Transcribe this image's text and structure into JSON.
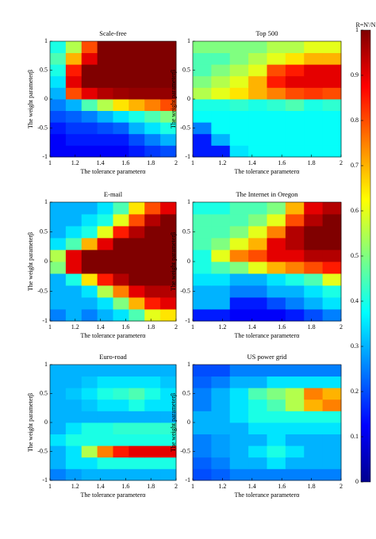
{
  "chart_data": [
    {
      "type": "heatmap",
      "title": "Scale-free",
      "x_label": "The tolerance parameterα",
      "y_label": "The weight parameterβ",
      "xlim": [
        1,
        2
      ],
      "ylim": [
        -1,
        1
      ],
      "xticks": [
        1,
        1.2,
        1.4,
        1.6,
        1.8,
        2
      ],
      "yticks": [
        -1,
        -0.5,
        0,
        0.5,
        1
      ],
      "z": [
        [
          0.12,
          0.12,
          0.12,
          0.12,
          0.12,
          0.15,
          0.18,
          0.2
        ],
        [
          0.12,
          0.15,
          0.15,
          0.15,
          0.15,
          0.2,
          0.25,
          0.3
        ],
        [
          0.15,
          0.18,
          0.18,
          0.2,
          0.22,
          0.3,
          0.35,
          0.4
        ],
        [
          0.2,
          0.22,
          0.25,
          0.3,
          0.35,
          0.4,
          0.45,
          0.5
        ],
        [
          0.25,
          0.3,
          0.45,
          0.55,
          0.65,
          0.7,
          0.75,
          0.8
        ],
        [
          0.3,
          0.8,
          0.9,
          0.95,
          0.97,
          0.98,
          0.98,
          0.98
        ],
        [
          0.35,
          0.9,
          1,
          1,
          1,
          1,
          1,
          1
        ],
        [
          0.4,
          0.85,
          1,
          1,
          1,
          1,
          1,
          1
        ],
        [
          0.45,
          0.7,
          0.9,
          1,
          1,
          1,
          1,
          1
        ],
        [
          0.4,
          0.55,
          0.8,
          1,
          1,
          1,
          1,
          1
        ]
      ]
    },
    {
      "type": "heatmap",
      "title": "Top 500",
      "x_label": "The tolerance parameterα",
      "y_label": "The weight parameterβ",
      "xlim": [
        1,
        2
      ],
      "ylim": [
        -1,
        1
      ],
      "xticks": [
        1,
        1.2,
        1.4,
        1.6,
        1.8,
        2
      ],
      "yticks": [
        -1,
        -0.5,
        0,
        0.5,
        1
      ],
      "z": [
        [
          0.15,
          0.15,
          0.35,
          0.38,
          0.38,
          0.38,
          0.38,
          0.38
        ],
        [
          0.15,
          0.3,
          0.38,
          0.38,
          0.38,
          0.38,
          0.38,
          0.38
        ],
        [
          0.25,
          0.38,
          0.38,
          0.38,
          0.38,
          0.38,
          0.38,
          0.38
        ],
        [
          0.38,
          0.38,
          0.38,
          0.38,
          0.38,
          0.38,
          0.38,
          0.38
        ],
        [
          0.4,
          0.4,
          0.42,
          0.4,
          0.42,
          0.45,
          0.4,
          0.42
        ],
        [
          0.55,
          0.6,
          0.65,
          0.7,
          0.75,
          0.8,
          0.82,
          0.8
        ],
        [
          0.5,
          0.55,
          0.6,
          0.7,
          0.85,
          0.9,
          0.9,
          0.9
        ],
        [
          0.45,
          0.5,
          0.55,
          0.6,
          0.8,
          0.85,
          0.9,
          0.9
        ],
        [
          0.45,
          0.45,
          0.5,
          0.55,
          0.6,
          0.65,
          0.7,
          0.7
        ],
        [
          0.5,
          0.5,
          0.5,
          0.5,
          0.55,
          0.55,
          0.6,
          0.6
        ]
      ]
    },
    {
      "type": "heatmap",
      "title": "E-mail",
      "x_label": "The tolerance parameterα",
      "y_label": "The weight parameterβ",
      "xlim": [
        1,
        2
      ],
      "ylim": [
        -1,
        1
      ],
      "xticks": [
        1,
        1.2,
        1.4,
        1.6,
        1.8,
        2
      ],
      "yticks": [
        -1,
        -0.5,
        0,
        0.5,
        1
      ],
      "z": [
        [
          0.25,
          0.3,
          0.25,
          0.3,
          0.35,
          0.45,
          0.6,
          0.65
        ],
        [
          0.3,
          0.3,
          0.3,
          0.35,
          0.5,
          0.7,
          0.85,
          0.9
        ],
        [
          0.3,
          0.3,
          0.35,
          0.55,
          0.75,
          0.9,
          0.95,
          0.95
        ],
        [
          0.3,
          0.4,
          0.65,
          0.85,
          0.95,
          1,
          1,
          1
        ],
        [
          0.5,
          0.9,
          1,
          1,
          1,
          1,
          1,
          1
        ],
        [
          0.55,
          0.9,
          1,
          1,
          1,
          1,
          1,
          1
        ],
        [
          0.35,
          0.45,
          0.7,
          0.9,
          1,
          1,
          1,
          1
        ],
        [
          0.3,
          0.35,
          0.4,
          0.6,
          0.85,
          0.95,
          1,
          1
        ],
        [
          0.3,
          0.3,
          0.35,
          0.4,
          0.6,
          0.8,
          0.95,
          1
        ],
        [
          0.3,
          0.3,
          0.3,
          0.35,
          0.45,
          0.65,
          0.8,
          0.9
        ]
      ]
    },
    {
      "type": "heatmap",
      "title": "The Internet in Oregon",
      "x_label": "The tolerance parameterα",
      "y_label": "The weight parameterβ",
      "xlim": [
        1,
        2
      ],
      "ylim": [
        -1,
        1
      ],
      "xticks": [
        1,
        1.2,
        1.4,
        1.6,
        1.8,
        2
      ],
      "yticks": [
        -1,
        -0.5,
        0,
        0.5,
        1
      ],
      "z": [
        [
          0.15,
          0.15,
          0.12,
          0.12,
          0.12,
          0.15,
          0.2,
          0.25
        ],
        [
          0.3,
          0.3,
          0.15,
          0.15,
          0.2,
          0.25,
          0.3,
          0.35
        ],
        [
          0.3,
          0.3,
          0.25,
          0.25,
          0.3,
          0.3,
          0.35,
          0.4
        ],
        [
          0.35,
          0.35,
          0.3,
          0.3,
          0.35,
          0.4,
          0.45,
          0.6
        ],
        [
          0.4,
          0.45,
          0.5,
          0.6,
          0.7,
          0.75,
          0.8,
          0.85
        ],
        [
          0.4,
          0.6,
          0.75,
          0.8,
          0.9,
          0.9,
          0.95,
          0.95
        ],
        [
          0.45,
          0.5,
          0.6,
          0.7,
          0.9,
          0.95,
          1,
          1
        ],
        [
          0.45,
          0.45,
          0.5,
          0.6,
          0.75,
          0.95,
          1,
          1
        ],
        [
          0.45,
          0.45,
          0.45,
          0.5,
          0.6,
          0.8,
          0.95,
          1
        ],
        [
          0.4,
          0.4,
          0.45,
          0.45,
          0.5,
          0.7,
          0.9,
          0.95
        ]
      ]
    },
    {
      "type": "heatmap",
      "title": "Euro-road",
      "x_label": "The tolerance parameterα",
      "y_label": "The weight parameterβ",
      "xlim": [
        1,
        2
      ],
      "ylim": [
        -1,
        1
      ],
      "xticks": [
        1,
        1.2,
        1.4,
        1.6,
        1.8,
        2
      ],
      "yticks": [
        -1,
        -0.5,
        0,
        0.5,
        1
      ],
      "z": [
        [
          0.25,
          0.28,
          0.3,
          0.3,
          0.3,
          0.3,
          0.3,
          0.3
        ],
        [
          0.3,
          0.35,
          0.35,
          0.4,
          0.4,
          0.4,
          0.4,
          0.4
        ],
        [
          0.3,
          0.35,
          0.55,
          0.75,
          0.85,
          0.9,
          0.9,
          0.9
        ],
        [
          0.35,
          0.4,
          0.4,
          0.4,
          0.4,
          0.4,
          0.4,
          0.4
        ],
        [
          0.3,
          0.35,
          0.4,
          0.4,
          0.42,
          0.42,
          0.42,
          0.42
        ],
        [
          0.3,
          0.3,
          0.3,
          0.3,
          0.3,
          0.3,
          0.3,
          0.3
        ],
        [
          0.3,
          0.3,
          0.32,
          0.35,
          0.35,
          0.4,
          0.35,
          0.35
        ],
        [
          0.3,
          0.32,
          0.35,
          0.4,
          0.42,
          0.45,
          0.4,
          0.35
        ],
        [
          0.3,
          0.3,
          0.32,
          0.35,
          0.35,
          0.35,
          0.35,
          0.32
        ],
        [
          0.3,
          0.3,
          0.3,
          0.3,
          0.3,
          0.3,
          0.3,
          0.3
        ]
      ]
    },
    {
      "type": "heatmap",
      "title": "US power grid",
      "x_label": "The tolerance parameterα",
      "y_label": "The weight parameterβ",
      "xlim": [
        1,
        2
      ],
      "ylim": [
        -1,
        1
      ],
      "xticks": [
        1,
        1.2,
        1.4,
        1.6,
        1.8,
        2
      ],
      "yticks": [
        -1,
        -0.5,
        0,
        0.5,
        1
      ],
      "z": [
        [
          0.2,
          0.22,
          0.25,
          0.25,
          0.25,
          0.25,
          0.25,
          0.25
        ],
        [
          0.22,
          0.25,
          0.3,
          0.3,
          0.35,
          0.3,
          0.3,
          0.3
        ],
        [
          0.25,
          0.28,
          0.3,
          0.35,
          0.4,
          0.35,
          0.3,
          0.3
        ],
        [
          0.25,
          0.28,
          0.3,
          0.3,
          0.35,
          0.3,
          0.3,
          0.3
        ],
        [
          0.3,
          0.3,
          0.3,
          0.35,
          0.35,
          0.35,
          0.35,
          0.35
        ],
        [
          0.3,
          0.3,
          0.35,
          0.4,
          0.4,
          0.4,
          0.4,
          0.4
        ],
        [
          0.25,
          0.3,
          0.35,
          0.4,
          0.45,
          0.55,
          0.7,
          0.75
        ],
        [
          0.25,
          0.3,
          0.35,
          0.45,
          0.5,
          0.55,
          0.75,
          0.7
        ],
        [
          0.22,
          0.25,
          0.3,
          0.3,
          0.35,
          0.35,
          0.35,
          0.35
        ],
        [
          0.2,
          0.2,
          0.25,
          0.25,
          0.25,
          0.25,
          0.25,
          0.25
        ]
      ]
    }
  ],
  "colorbar": {
    "label": "R=N'/N",
    "lim": [
      0,
      1
    ],
    "ticks": [
      0,
      0.1,
      0.2,
      0.3,
      0.4,
      0.5,
      0.6,
      0.7,
      0.8,
      0.9,
      1
    ]
  }
}
